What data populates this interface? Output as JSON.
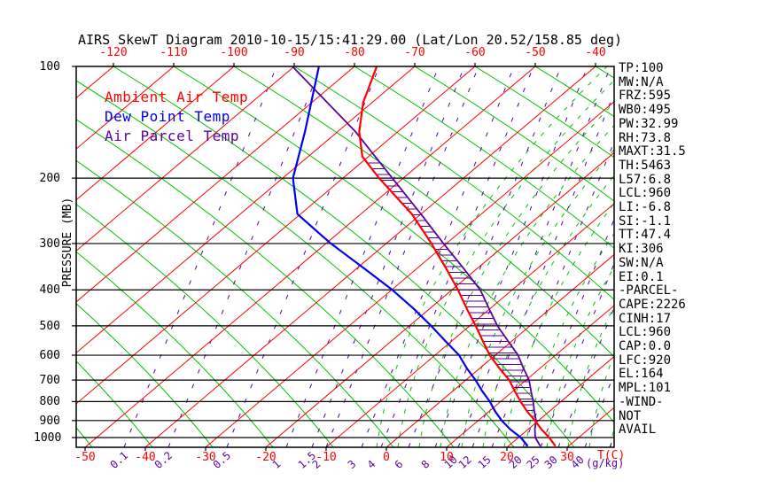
{
  "title": "AIRS SkewT Diagram 2010-10-15/15:41:29.00 (Lat/Lon 20.52/158.85 deg)",
  "colors": {
    "isotherm": "#ff0000",
    "dry_adiabat": "#00c300",
    "moist_adiabat": "#00c300",
    "mixing_ratio": "#5a00a0",
    "ambient": "#ff0000",
    "dewpoint": "#0000ee",
    "parcel": "#5a00a0",
    "axis": "#000000"
  },
  "axes": {
    "top_labels": [
      "-120",
      "-110",
      "-100",
      "-90",
      "-80",
      "-70",
      "-60",
      "-50",
      "-40"
    ],
    "bottom_labels": [
      "-50",
      "-40",
      "-30",
      "-20",
      "-10",
      "0",
      "10",
      "20",
      "30"
    ],
    "bottom_unit": "T(C)",
    "mixing_labels": [
      "0.1",
      "0.2",
      "0.5",
      "1",
      "1.5",
      "2",
      "3",
      "4",
      "6",
      "8",
      "10",
      "12",
      "15",
      "20",
      "25",
      "30",
      "40"
    ],
    "mixing_unit": "(g/kg)",
    "pressure_labels": [
      "100",
      "200",
      "300",
      "400",
      "500",
      "600",
      "700",
      "800",
      "900",
      "1000"
    ],
    "pressure_axis_title": "PRESSURE (MB)"
  },
  "legend": [
    {
      "label": "Ambient Air Temp",
      "color": "#ff0000"
    },
    {
      "label": "Dew Point Temp",
      "color": "#0000ee"
    },
    {
      "label": "Air Parcel Temp",
      "color": "#5a00a0"
    }
  ],
  "stats": [
    "TP:100",
    "MW:N/A",
    "FRZ:595",
    "WB0:495",
    "PW:32.99",
    "RH:73.8",
    "MAXT:31.5",
    "TH:5463",
    "L57:6.8",
    "LCL:960",
    "LI:-6.8",
    "SI:-1.1",
    "TT:47.4",
    "KI:306",
    "SW:N/A",
    "EI:0.1",
    "-PARCEL-",
    "CAPE:2226",
    "CINH:17",
    "LCL:960",
    "CAP:0.0",
    "LFC:920",
    "EL:164",
    "MPL:101",
    "-WIND-",
    "NOT",
    "AVAIL"
  ],
  "chart_data": {
    "type": "line",
    "title": "AIRS SkewT Diagram 2010-10-15/15:41:29.00 (Lat/Lon 20.52/158.85 deg)",
    "x_axis": {
      "label": "T(C)",
      "top_ticks": [
        -120,
        -110,
        -100,
        -90,
        -80,
        -70,
        -60,
        -50,
        -40
      ],
      "bottom_ticks": [
        -50,
        -40,
        -30,
        -20,
        -10,
        0,
        10,
        20,
        30
      ]
    },
    "y_axis": {
      "label": "PRESSURE (MB)",
      "scale": "log",
      "ticks": [
        100,
        200,
        300,
        400,
        500,
        600,
        700,
        800,
        900,
        1000
      ],
      "range": [
        100,
        1064
      ]
    },
    "mixing_ratio_ticks_gkg": [
      0.1,
      0.2,
      0.5,
      1,
      1.5,
      2,
      3,
      4,
      6,
      8,
      10,
      12,
      15,
      20,
      25,
      30,
      40
    ],
    "series": [
      {
        "name": "Ambient Air Temp",
        "color": "#ff0000",
        "points": [
          {
            "p": 1050,
            "t": 27.6
          },
          {
            "p": 1000,
            "t": 25.1
          },
          {
            "p": 950,
            "t": 22.2
          },
          {
            "p": 900,
            "t": 19.4
          },
          {
            "p": 850,
            "t": 16.3
          },
          {
            "p": 800,
            "t": 13.3
          },
          {
            "p": 750,
            "t": 10.3
          },
          {
            "p": 700,
            "t": 7.2
          },
          {
            "p": 650,
            "t": 3.2
          },
          {
            "p": 600,
            "t": -0.9
          },
          {
            "p": 550,
            "t": -4.8
          },
          {
            "p": 500,
            "t": -9.0
          },
          {
            "p": 450,
            "t": -13.8
          },
          {
            "p": 400,
            "t": -19.0
          },
          {
            "p": 350,
            "t": -25.2
          },
          {
            "p": 300,
            "t": -32.5
          },
          {
            "p": 250,
            "t": -41.5
          },
          {
            "p": 200,
            "t": -54.0
          },
          {
            "p": 175,
            "t": -61.0
          },
          {
            "p": 150,
            "t": -66.4
          },
          {
            "p": 125,
            "t": -71.5
          },
          {
            "p": 100,
            "t": -76.3
          }
        ]
      },
      {
        "name": "Dew Point Temp",
        "color": "#0000ee",
        "points": [
          {
            "p": 1050,
            "t": 23.0
          },
          {
            "p": 1000,
            "t": 20.4
          },
          {
            "p": 950,
            "t": 17.0
          },
          {
            "p": 900,
            "t": 13.9
          },
          {
            "p": 850,
            "t": 11.0
          },
          {
            "p": 800,
            "t": 8.2
          },
          {
            "p": 750,
            "t": 4.9
          },
          {
            "p": 700,
            "t": 1.6
          },
          {
            "p": 650,
            "t": -2.2
          },
          {
            "p": 600,
            "t": -6.0
          },
          {
            "p": 550,
            "t": -11.0
          },
          {
            "p": 500,
            "t": -16.4
          },
          {
            "p": 450,
            "t": -22.6
          },
          {
            "p": 400,
            "t": -29.9
          },
          {
            "p": 350,
            "t": -38.8
          },
          {
            "p": 300,
            "t": -49.2
          },
          {
            "p": 250,
            "t": -60.5
          },
          {
            "p": 200,
            "t": -68.3
          },
          {
            "p": 150,
            "t": -75.4
          },
          {
            "p": 100,
            "t": -85.9
          }
        ]
      },
      {
        "name": "Air Parcel Temp",
        "color": "#5a00a0",
        "points": [
          {
            "p": 1050,
            "t": 25.1
          },
          {
            "p": 1000,
            "t": 22.8
          },
          {
            "p": 950,
            "t": 21.1
          },
          {
            "p": 900,
            "t": 19.6
          },
          {
            "p": 850,
            "t": 17.5
          },
          {
            "p": 800,
            "t": 15.4
          },
          {
            "p": 750,
            "t": 13.0
          },
          {
            "p": 700,
            "t": 10.5
          },
          {
            "p": 650,
            "t": 7.2
          },
          {
            "p": 600,
            "t": 3.8
          },
          {
            "p": 550,
            "t": -0.6
          },
          {
            "p": 500,
            "t": -5.4
          },
          {
            "p": 450,
            "t": -10.1
          },
          {
            "p": 400,
            "t": -15.3
          },
          {
            "p": 350,
            "t": -22.3
          },
          {
            "p": 300,
            "t": -30.5
          },
          {
            "p": 250,
            "t": -40.0
          },
          {
            "p": 200,
            "t": -51.8
          },
          {
            "p": 150,
            "t": -67.0
          },
          {
            "p": 100,
            "t": -90.3
          }
        ]
      }
    ]
  }
}
